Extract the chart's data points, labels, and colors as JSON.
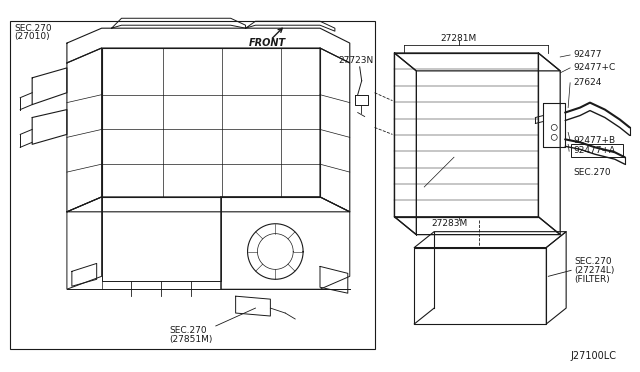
{
  "bg_color": "#ffffff",
  "line_color": "#1a1a1a",
  "text_color": "#1a1a1a",
  "diagram_code": "J27100LC",
  "figsize": [
    6.4,
    3.72
  ],
  "dpi": 100,
  "labels": {
    "sec270_top_a": "SEC.270",
    "sec270_top_b": "(27010)",
    "sec270_bot_a": "SEC.270",
    "sec270_bot_b": "(27851M)",
    "sec270_right": "SEC.270",
    "sec270_filter_a": "SEC.270",
    "sec270_filter_b": "(27274L)",
    "sec270_filter_c": "(FILTER)",
    "front": "FRONT",
    "p27281M": "27281M",
    "p92477": "92477",
    "p92477C": "92477+C",
    "p27624": "27624",
    "p92477B": "92477+B",
    "p92477A": "92477+A",
    "p27283M": "27283M",
    "p27723N": "27723N",
    "diagram_id": "J27100LC"
  }
}
